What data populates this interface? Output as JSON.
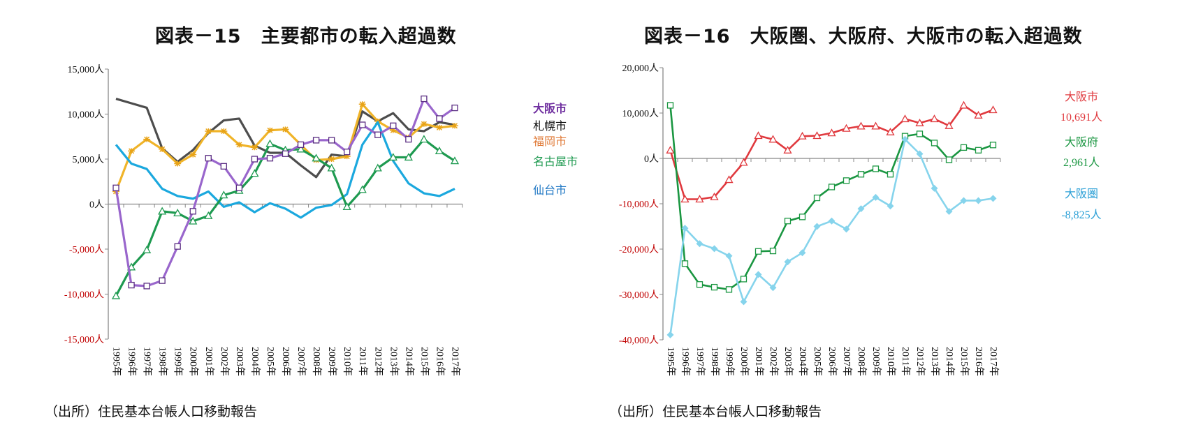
{
  "left": {
    "title": "図表－15　主要都市の転入超過数",
    "source": "（出所）住民基本台帳人口移動報告"
  },
  "right": {
    "title": "図表－16　大阪圏、大阪府、大阪市の転入超過数",
    "source": "（出所）住民基本台帳人口移動報告"
  },
  "chart_data": [
    {
      "type": "line",
      "title": "図表－15　主要都市の転入超過数",
      "categories": [
        "1995年",
        "1996年",
        "1997年",
        "1998年",
        "1999年",
        "2000年",
        "2001年",
        "2002年",
        "2003年",
        "2004年",
        "2005年",
        "2006年",
        "2007年",
        "2008年",
        "2009年",
        "2010年",
        "2011年",
        "2012年",
        "2013年",
        "2014年",
        "2015年",
        "2016年",
        "2017年"
      ],
      "ylim": [
        -15000,
        15000
      ],
      "yticks": [
        15000,
        10000,
        5000,
        0,
        -5000,
        -10000,
        -15000
      ],
      "ytick_labels": [
        "15,000人",
        "10,000人",
        "5,000人",
        "0人",
        "-5,000人",
        "-10,000人",
        "-15,000人"
      ],
      "negative_tick_color": "#c00000",
      "grid": false,
      "legend": "right (inline labels at line ends)",
      "series": [
        {
          "name": "札幌市",
          "color": "#4d4d4d",
          "marker": "none",
          "label_color": "#111111",
          "values": [
            11700,
            11200,
            10700,
            6200,
            4700,
            6000,
            7900,
            9300,
            9500,
            6500,
            5700,
            5700,
            4300,
            3000,
            5500,
            5300,
            10300,
            9200,
            10100,
            8300,
            8100,
            9100,
            8800
          ]
        },
        {
          "name": "福岡市",
          "color": "#f0b429",
          "marker": "star",
          "label_color": "#e07b39",
          "values": [
            1400,
            5900,
            7200,
            6100,
            4500,
            5500,
            8100,
            8100,
            6600,
            6300,
            8200,
            8300,
            6600,
            4900,
            5000,
            5300,
            11100,
            9200,
            8200,
            7400,
            8900,
            8500,
            8700
          ]
        },
        {
          "name": "仙台市",
          "color": "#1ba8de",
          "marker": "none",
          "label_color": "#1f77c4",
          "values": [
            6600,
            4500,
            3900,
            1700,
            900,
            600,
            1400,
            -300,
            200,
            -900,
            100,
            -500,
            -1500,
            -400,
            -100,
            1100,
            6600,
            9100,
            4800,
            2300,
            1200,
            900,
            1700
          ]
        },
        {
          "name": "名古屋市",
          "color": "#1e9a50",
          "marker": "triangle",
          "label_color": "#1e9a50",
          "values": [
            -10200,
            -7000,
            -5100,
            -800,
            -1000,
            -1900,
            -1300,
            1000,
            1500,
            3400,
            6700,
            6000,
            6100,
            5100,
            4000,
            -300,
            1600,
            4000,
            5200,
            5200,
            7200,
            5900,
            4800
          ]
        },
        {
          "name": "大阪市",
          "color": "#9966cc",
          "marker": "square",
          "label_color": "#7030a0",
          "values": [
            1800,
            -9000,
            -9100,
            -8500,
            -4700,
            -800,
            5100,
            4200,
            1800,
            5000,
            5100,
            5600,
            6600,
            7100,
            7100,
            5800,
            8800,
            7700,
            8700,
            7200,
            11700,
            9500,
            10691
          ]
        }
      ]
    },
    {
      "type": "line",
      "title": "図表－16　大阪圏、大阪府、大阪市の転入超過数",
      "categories": [
        "1995年",
        "1996年",
        "1997年",
        "1998年",
        "1999年",
        "2000年",
        "2001年",
        "2002年",
        "2003年",
        "2004年",
        "2005年",
        "2006年",
        "2007年",
        "2008年",
        "2009年",
        "2010年",
        "2011年",
        "2012年",
        "2013年",
        "2014年",
        "2015年",
        "2016年",
        "2017年"
      ],
      "ylim": [
        -40000,
        20000
      ],
      "yticks": [
        20000,
        10000,
        0,
        -10000,
        -20000,
        -30000,
        -40000
      ],
      "ytick_labels": [
        "20,000人",
        "10,000人",
        "0人",
        "-10,000人",
        "-20,000人",
        "-30,000人",
        "-40,000人"
      ],
      "negative_tick_color": "#c00000",
      "grid": false,
      "legend": "right (inline labels at line ends)",
      "series": [
        {
          "name": "大阪市",
          "color": "#e0393e",
          "marker": "triangle",
          "end_label": "10,691人",
          "values": [
            1800,
            -9000,
            -9000,
            -8500,
            -4700,
            -900,
            5000,
            4200,
            1800,
            4900,
            5000,
            5600,
            6600,
            7100,
            7100,
            5800,
            8700,
            7800,
            8700,
            7200,
            11700,
            9500,
            10691
          ]
        },
        {
          "name": "大阪府",
          "color": "#1a9641",
          "marker": "square",
          "end_label": "2,961人",
          "values": [
            11700,
            -23200,
            -27800,
            -28400,
            -28900,
            -26600,
            -20500,
            -20400,
            -13800,
            -12900,
            -8700,
            -6300,
            -4900,
            -3500,
            -2300,
            -3500,
            4900,
            5400,
            3400,
            -300,
            2400,
            1800,
            2961
          ]
        },
        {
          "name": "大阪圏",
          "color": "#86d4ec",
          "marker": "diamond",
          "end_label": "-8,825人",
          "label_color": "#2a9fd6",
          "values": [
            -38900,
            -15400,
            -18800,
            -19900,
            -21500,
            -31600,
            -25600,
            -28500,
            -22800,
            -20800,
            -15000,
            -13800,
            -15600,
            -11100,
            -8600,
            -10500,
            4200,
            1000,
            -6600,
            -11700,
            -9300,
            -9300,
            -8825
          ]
        }
      ]
    }
  ]
}
